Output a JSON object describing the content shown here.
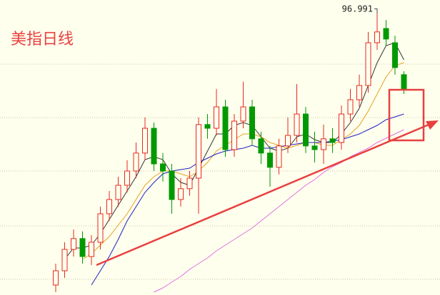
{
  "chart_data": {
    "type": "candlestick",
    "title": "美指日线",
    "annotation": "96.991",
    "ylim": [
      86.95,
      97.3
    ],
    "up_color": "#e8281e",
    "down_color": "#009a00",
    "open": [
      87.3,
      87.8,
      88.55,
      88.93,
      88.3,
      88.8,
      89.8,
      90.3,
      90.8,
      91.3,
      91.93,
      92.8,
      91.55,
      91.3,
      90.3,
      90.68,
      91.05,
      92.93,
      92.8,
      93.55,
      92.05,
      93.05,
      93.55,
      92.43,
      91.93,
      91.43,
      92.18,
      92.55,
      93.3,
      92.18,
      92.05,
      92.43,
      92.3,
      93.3,
      93.8,
      94.3,
      95.8,
      96.3,
      95.8,
      94.68
    ],
    "high": [
      88.05,
      88.8,
      89.25,
      89.18,
      89.05,
      90.05,
      90.6,
      91.1,
      91.68,
      92.3,
      93.18,
      93.0,
      91.93,
      91.55,
      91.05,
      91.3,
      93.18,
      93.3,
      94.18,
      93.8,
      93.3,
      94.43,
      93.8,
      92.68,
      92.18,
      92.43,
      93.18,
      94.35,
      93.55,
      92.68,
      92.93,
      92.8,
      93.6,
      94.18,
      94.68,
      96.18,
      96.991,
      96.6,
      96.05,
      94.8
    ],
    "low": [
      87.05,
      87.55,
      88.3,
      88.05,
      88.0,
      88.55,
      89.55,
      90.05,
      90.55,
      91.05,
      91.68,
      91.3,
      90.93,
      89.8,
      90.05,
      90.43,
      89.8,
      92.43,
      92.55,
      91.8,
      91.8,
      92.8,
      92.18,
      91.55,
      90.75,
      91.18,
      91.93,
      92.3,
      91.93,
      91.6,
      91.55,
      91.93,
      92.05,
      93.05,
      93.55,
      94.05,
      95.55,
      95.68,
      94.68,
      94.0
    ],
    "close": [
      87.8,
      88.55,
      88.93,
      88.3,
      88.8,
      89.8,
      90.3,
      90.8,
      91.3,
      91.93,
      92.8,
      91.55,
      91.3,
      90.3,
      90.68,
      91.05,
      92.93,
      92.8,
      93.55,
      92.05,
      93.05,
      93.55,
      92.43,
      91.93,
      91.43,
      92.18,
      92.55,
      93.3,
      92.18,
      92.05,
      92.43,
      92.3,
      93.3,
      93.8,
      94.3,
      95.8,
      96.18,
      95.93,
      94.93,
      94.18
    ],
    "lines": [
      {
        "color": "#333333",
        "values": [
          null,
          88.2,
          88.6,
          88.6,
          88.7,
          89.1,
          89.6,
          90.1,
          90.6,
          91.1,
          91.7,
          91.8,
          91.7,
          91.2,
          90.9,
          90.8,
          91.4,
          92.0,
          92.6,
          92.6,
          92.9,
          93.0,
          92.9,
          92.5,
          92.1,
          92.0,
          92.1,
          92.5,
          92.6,
          92.4,
          92.3,
          92.3,
          92.6,
          93.0,
          93.5,
          94.3,
          95.1,
          95.7,
          95.8,
          95.2
        ]
      },
      {
        "color": "#e8a020",
        "values": [
          null,
          null,
          null,
          88.2,
          88.4,
          88.7,
          89.0,
          89.4,
          89.8,
          90.3,
          90.8,
          91.1,
          91.3,
          91.3,
          91.2,
          91.1,
          91.3,
          91.6,
          92.0,
          92.2,
          92.4,
          92.6,
          92.6,
          92.5,
          92.3,
          92.2,
          92.1,
          92.2,
          92.3,
          92.3,
          92.2,
          92.2,
          92.4,
          92.6,
          92.9,
          93.4,
          94.0,
          94.6,
          95.0,
          95.1
        ]
      },
      {
        "color": "#2020c0",
        "values": [
          null,
          null,
          null,
          null,
          87.3,
          87.8,
          88.3,
          88.9,
          89.55,
          90.05,
          90.55,
          90.9,
          91.2,
          91.3,
          91.35,
          91.4,
          91.6,
          91.75,
          91.9,
          92.0,
          92.05,
          92.1,
          92.2,
          92.1,
          92.1,
          92.15,
          92.2,
          92.25,
          92.3,
          92.3,
          92.3,
          92.35,
          92.4,
          92.5,
          92.6,
          92.75,
          92.9,
          93.1,
          93.2,
          93.3
        ]
      },
      {
        "color": "#e070e0",
        "values": [
          null,
          null,
          null,
          null,
          null,
          null,
          null,
          null,
          null,
          null,
          null,
          87.05,
          87.2,
          87.4,
          87.6,
          87.85,
          88.05,
          88.25,
          88.5,
          88.7,
          88.9,
          89.1,
          89.3,
          89.55,
          89.8,
          90.05,
          90.3,
          90.55,
          90.8,
          91.0,
          91.25,
          91.45,
          91.6,
          91.8,
          91.95,
          92.1,
          92.3,
          92.45,
          92.6,
          92.75
        ]
      }
    ]
  }
}
